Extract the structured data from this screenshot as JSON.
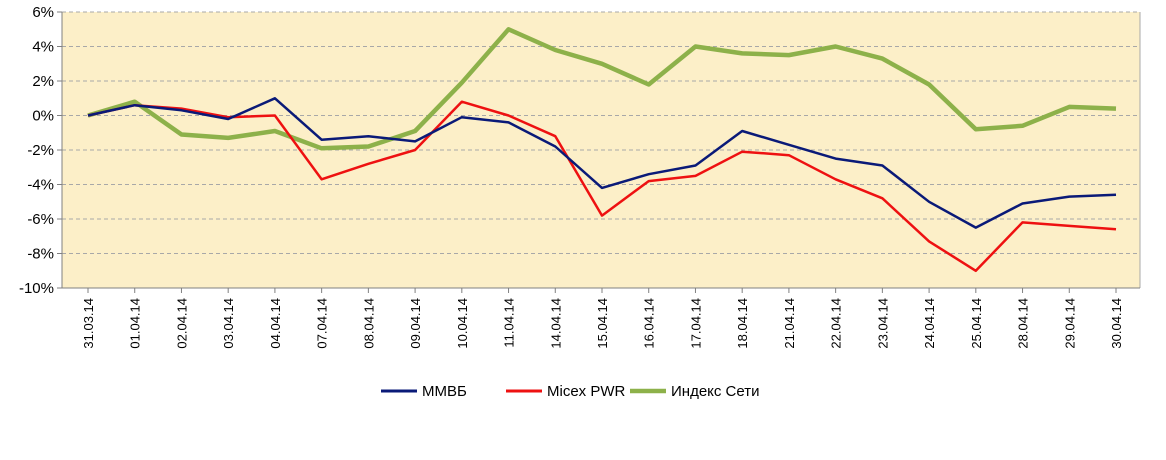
{
  "chart_data": {
    "type": "line",
    "categories": [
      "31.03.14",
      "01.04.14",
      "02.04.14",
      "03.04.14",
      "04.04.14",
      "07.04.14",
      "08.04.14",
      "09.04.14",
      "10.04.14",
      "11.04.14",
      "14.04.14",
      "15.04.14",
      "16.04.14",
      "17.04.14",
      "18.04.14",
      "21.04.14",
      "22.04.14",
      "23.04.14",
      "24.04.14",
      "25.04.14",
      "28.04.14",
      "29.04.14",
      "30.04.14"
    ],
    "yticks": [
      "6%",
      "4%",
      "2%",
      "0%",
      "-2%",
      "-4%",
      "-6%",
      "-8%",
      "-10%"
    ],
    "ylim": [
      -10,
      6
    ],
    "grid": true,
    "legend_position": "bottom",
    "background_color": "#fcefc8",
    "series": [
      {
        "name": "ММВБ",
        "color": "#0a1a78",
        "values": [
          0.0,
          0.6,
          0.3,
          -0.2,
          1.0,
          -1.4,
          -1.2,
          -1.5,
          -0.1,
          -0.4,
          -1.8,
          -4.2,
          -3.4,
          -2.9,
          -0.9,
          -1.7,
          -2.5,
          -2.9,
          -5.0,
          -6.5,
          -5.1,
          -4.7,
          -4.6
        ]
      },
      {
        "name": "Micex PWR",
        "color": "#ee1111",
        "values": [
          0.0,
          0.6,
          0.4,
          -0.1,
          0.0,
          -3.7,
          -2.8,
          -2.0,
          0.8,
          0.0,
          -1.2,
          -5.8,
          -3.8,
          -3.5,
          -2.1,
          -2.3,
          -3.7,
          -4.8,
          -7.3,
          -9.0,
          -6.2,
          -6.4,
          -6.6
        ]
      },
      {
        "name": "Индекс Сети",
        "color": "#8db14a",
        "values": [
          0.0,
          0.8,
          -1.1,
          -1.3,
          -0.9,
          -1.9,
          -1.8,
          -0.9,
          1.9,
          5.0,
          3.8,
          3.0,
          1.8,
          4.0,
          3.6,
          3.5,
          4.0,
          3.3,
          1.8,
          -0.8,
          -0.6,
          0.5,
          0.4
        ]
      }
    ]
  }
}
